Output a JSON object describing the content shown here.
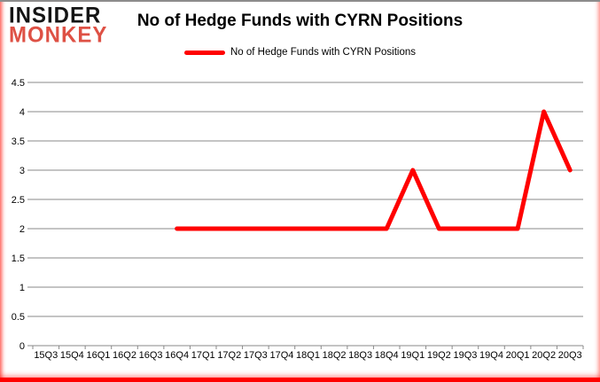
{
  "brand": {
    "line1": "INSIDER",
    "line2": "MONKEY",
    "insider_color": "#141414",
    "monkey_color": "#de5145"
  },
  "header": {
    "title": "No of Hedge Funds with CYRN Positions"
  },
  "legend": {
    "label": "No of Hedge Funds with CYRN Positions"
  },
  "chart_data": {
    "type": "line",
    "title": "No of Hedge Funds with CYRN Positions",
    "categories": [
      "15Q3",
      "15Q4",
      "16Q1",
      "16Q2",
      "16Q3",
      "16Q4",
      "17Q1",
      "17Q2",
      "17Q3",
      "17Q4",
      "18Q1",
      "18Q2",
      "18Q3",
      "18Q4",
      "19Q1",
      "19Q2",
      "19Q3",
      "19Q4",
      "20Q1",
      "20Q2",
      "20Q3"
    ],
    "series": [
      {
        "name": "No of Hedge Funds with CYRN Positions",
        "values": [
          null,
          null,
          null,
          null,
          null,
          2,
          2,
          2,
          2,
          2,
          2,
          2,
          2,
          2,
          3,
          2,
          2,
          2,
          2,
          4,
          3
        ]
      }
    ],
    "ylim": [
      0,
      4.5
    ],
    "ytick_step": 0.5,
    "grid": true,
    "legend_position": "top-center",
    "line_color": "#ff0000",
    "grid_color": "#898989",
    "axis_label_color": "#000000"
  }
}
